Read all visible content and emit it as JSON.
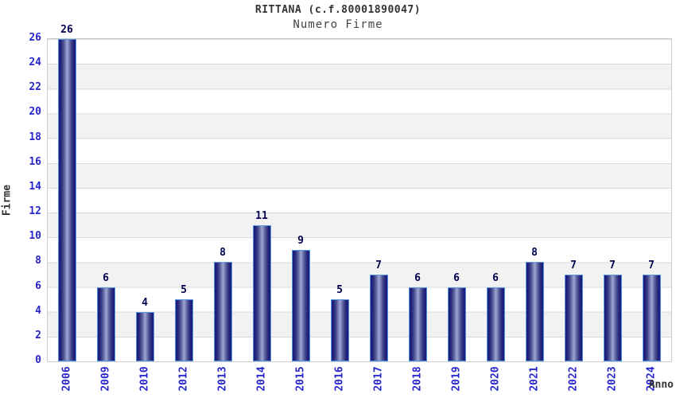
{
  "chart": {
    "title": "RITTANA (c.f.80001890047)",
    "subtitle": "Numero Firme",
    "ylabel": "Firme",
    "xlabel": "Anno"
  },
  "chart_data": {
    "type": "bar",
    "title": "RITTANA (c.f.80001890047)",
    "subtitle": "Numero Firme",
    "xlabel": "Anno",
    "ylabel": "Firme",
    "categories": [
      "2006",
      "2009",
      "2010",
      "2012",
      "2013",
      "2014",
      "2015",
      "2016",
      "2017",
      "2018",
      "2019",
      "2020",
      "2021",
      "2022",
      "2023",
      "2024"
    ],
    "values": [
      26,
      6,
      4,
      5,
      8,
      11,
      9,
      5,
      7,
      6,
      6,
      6,
      8,
      7,
      7,
      7
    ],
    "ylim": [
      0,
      26
    ],
    "ytick_step": 2,
    "grid": "alternating-horizontal-bands",
    "legend": "none",
    "colors": {
      "bar_dark": "#1a1a78",
      "bar_light": "#9fa6d4",
      "bar_border": "#5596e0",
      "axis_tick_label": "#2626cc",
      "value_label": "#00004f",
      "band_gray": "#f2f2f2",
      "gridline": "#d9d9d9",
      "plot_border": "#cccccc",
      "title_text": "#333333"
    }
  }
}
